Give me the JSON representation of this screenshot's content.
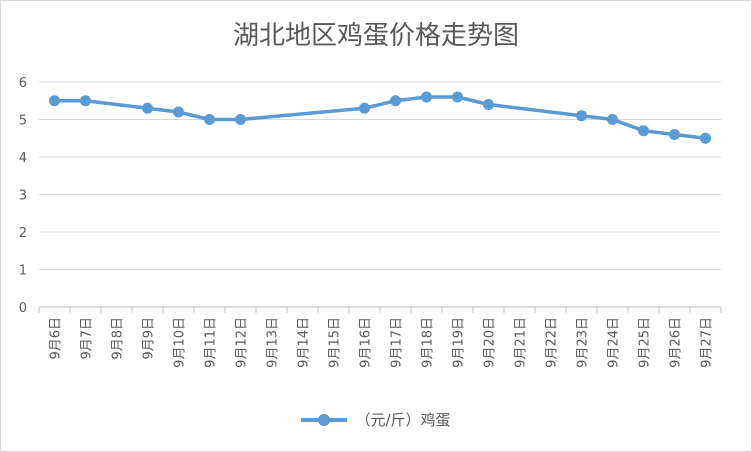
{
  "chart_data": {
    "type": "line",
    "title": "湖北地区鸡蛋价格走势图",
    "categories": [
      "9月6日",
      "9月7日",
      "9月8日",
      "9月9日",
      "9月10日",
      "9月11日",
      "9月12日",
      "9月13日",
      "9月14日",
      "9月15日",
      "9月16日",
      "9月17日",
      "9月18日",
      "9月19日",
      "9月20日",
      "9月21日",
      "9月22日",
      "9月23日",
      "9月24日",
      "9月25日",
      "9月26日",
      "9月27日"
    ],
    "series": [
      {
        "name": "（元/斤）鸡蛋",
        "color": "#5b9bd5",
        "values": [
          5.5,
          5.5,
          null,
          5.3,
          5.2,
          5.0,
          5.0,
          null,
          null,
          null,
          5.3,
          5.5,
          5.6,
          5.6,
          5.4,
          null,
          null,
          5.1,
          5.0,
          4.7,
          4.6,
          4.5
        ]
      }
    ],
    "ylim": [
      0,
      6
    ],
    "yticks": [
      "0",
      "1",
      "2",
      "3",
      "4",
      "5",
      "6"
    ],
    "grid": true,
    "legend_position": "bottom"
  }
}
